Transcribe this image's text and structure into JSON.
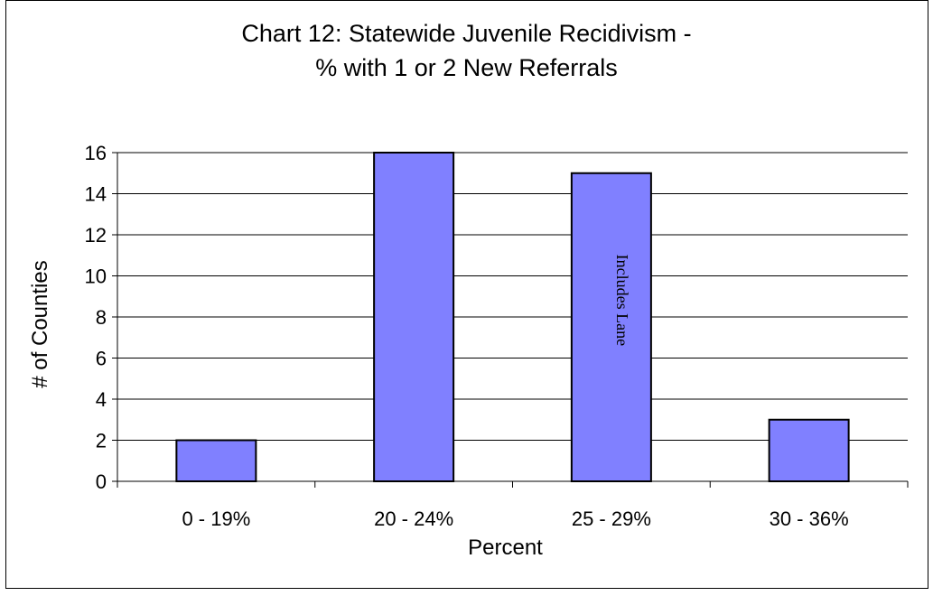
{
  "chart_data": {
    "type": "bar",
    "title_line1": "Chart 12: Statewide Juvenile Recidivism -",
    "title_line2": "% with 1 or 2 New Referrals",
    "xlabel": "Percent",
    "ylabel": "# of Counties",
    "categories": [
      "0 - 19%",
      "20 - 24%",
      "25 - 29%",
      "30 - 36%"
    ],
    "values": [
      2,
      16,
      15,
      3
    ],
    "ylim": [
      0,
      16
    ],
    "yticks": [
      0,
      2,
      4,
      6,
      8,
      10,
      12,
      14,
      16
    ],
    "grid": true,
    "legend": "none",
    "bar_color": "#8080ff",
    "annotations": [
      {
        "category": "25 - 29%",
        "text": "Includes Lane"
      }
    ]
  }
}
